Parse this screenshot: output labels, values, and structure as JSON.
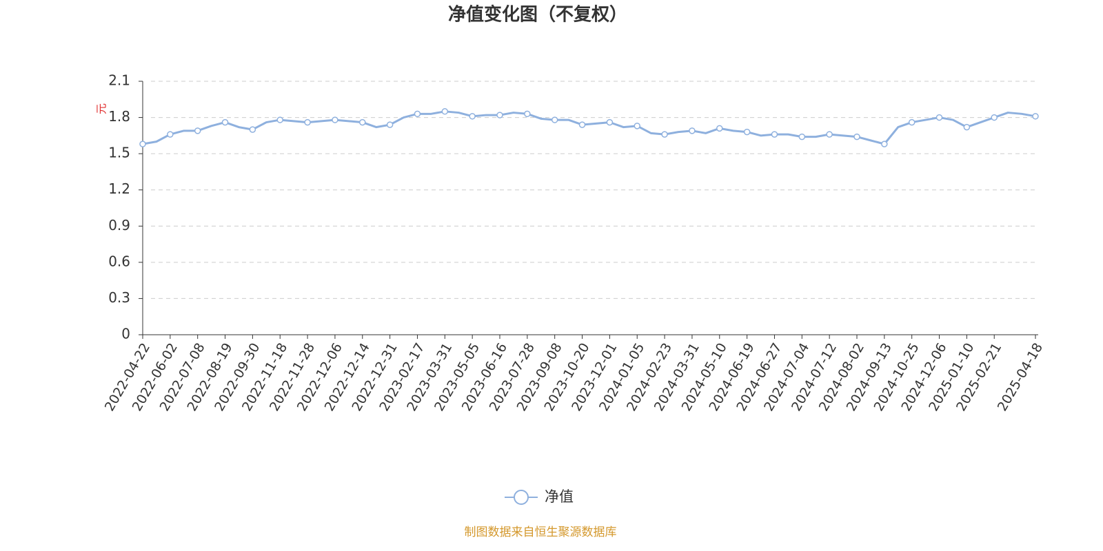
{
  "chart_data": {
    "type": "line",
    "title": "净值变化图（不复权）",
    "y_label": "元",
    "source": "制图数据来自恒生聚源数据库",
    "categories": [
      "2022-04-22",
      null,
      "2022-06-02",
      null,
      "2022-07-08",
      null,
      "2022-08-19",
      null,
      "2022-09-30",
      null,
      "2022-11-18",
      null,
      "2022-11-28",
      null,
      "2022-12-06",
      null,
      "2022-12-14",
      null,
      "2022-12-31",
      null,
      "2023-02-17",
      null,
      "2023-03-31",
      null,
      "2023-05-05",
      null,
      "2023-06-16",
      null,
      "2023-07-28",
      null,
      "2023-09-08",
      null,
      "2023-10-20",
      null,
      "2023-12-01",
      null,
      "2024-01-05",
      null,
      "2024-02-23",
      null,
      "2024-03-31",
      null,
      "2024-05-10",
      null,
      "2024-06-19",
      null,
      "2024-06-27",
      null,
      "2024-07-04",
      null,
      "2024-07-12",
      null,
      "2024-08-02",
      null,
      "2024-09-13",
      null,
      "2024-10-25",
      null,
      "2024-12-06",
      null,
      "2025-01-10",
      null,
      "2025-02-21",
      null,
      null,
      "2025-04-18"
    ],
    "series": [
      {
        "name": "净值",
        "color": "#8eb0de",
        "values": [
          1.58,
          1.6,
          1.66,
          1.69,
          1.69,
          1.73,
          1.76,
          1.72,
          1.7,
          1.76,
          1.78,
          1.77,
          1.76,
          1.77,
          1.78,
          1.77,
          1.76,
          1.72,
          1.74,
          1.8,
          1.83,
          1.83,
          1.85,
          1.84,
          1.81,
          1.82,
          1.82,
          1.84,
          1.83,
          1.79,
          1.78,
          1.78,
          1.74,
          1.75,
          1.76,
          1.72,
          1.73,
          1.67,
          1.66,
          1.68,
          1.69,
          1.67,
          1.71,
          1.69,
          1.68,
          1.65,
          1.66,
          1.66,
          1.64,
          1.64,
          1.66,
          1.65,
          1.64,
          1.61,
          1.58,
          1.72,
          1.76,
          1.78,
          1.8,
          1.78,
          1.72,
          1.76,
          1.8,
          1.84,
          1.83,
          1.81
        ]
      }
    ],
    "ylim": [
      0,
      2.1
    ],
    "yticks": [
      0,
      0.3,
      0.6,
      0.9,
      1.2,
      1.5,
      1.8,
      2.1
    ],
    "grid": true
  }
}
